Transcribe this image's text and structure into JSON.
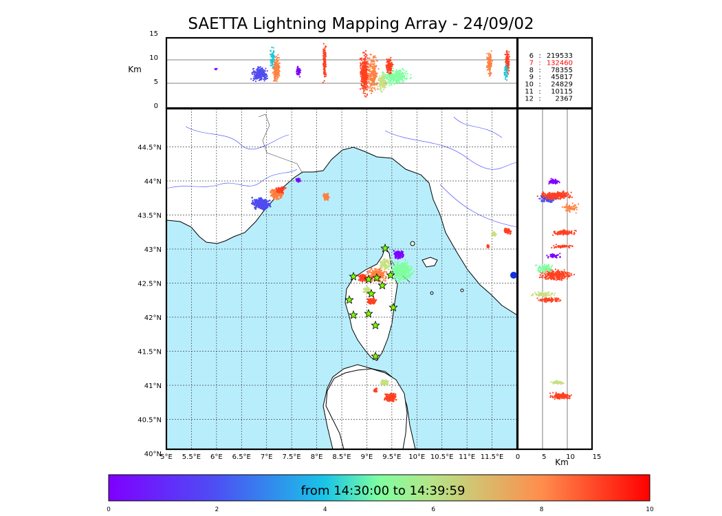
{
  "title": "SAETTA Lightning Mapping Array - 24/09/02",
  "altitude_unit": "Km",
  "top_panel": {
    "y_ticks": [
      "15",
      "10",
      "5",
      "0"
    ]
  },
  "right_panel": {
    "x_ticks": [
      "0",
      "5",
      "10",
      "15"
    ]
  },
  "map": {
    "lon_labels": [
      "5°E",
      "5.5°E",
      "6°E",
      "6.5°E",
      "7°E",
      "7.5°E",
      "8°E",
      "8.5°E",
      "9°E",
      "9.5°E",
      "10°E",
      "10.5°E",
      "11°E",
      "11.5°E"
    ],
    "lat_labels": [
      "44.5°N",
      "44°N",
      "43.5°N",
      "43°N",
      "42.5°N",
      "42°N",
      "41.5°N",
      "41°N",
      "40.5°N",
      "40°N"
    ],
    "lon_range": [
      5,
      12
    ],
    "lat_range": [
      40,
      45
    ]
  },
  "counts": [
    {
      "level": "6",
      "sep": ":",
      "value": "219533",
      "color": "#000000"
    },
    {
      "level": "7",
      "sep": ":",
      "value": "132460",
      "color": "#ff0000"
    },
    {
      "level": "8",
      "sep": ":",
      "value": "78355",
      "color": "#000000"
    },
    {
      "level": "9",
      "sep": ":",
      "value": "45817",
      "color": "#000000"
    },
    {
      "level": "10",
      "sep": ":",
      "value": "24829",
      "color": "#000000"
    },
    {
      "level": "11",
      "sep": ":",
      "value": "10115",
      "color": "#000000"
    },
    {
      "level": "12",
      "sep": ":",
      "value": "2367",
      "color": "#000000"
    }
  ],
  "colorbar": {
    "label": "from 14:30:00 to 14:39:59",
    "ticks": [
      "0",
      "2",
      "4",
      "6",
      "8",
      "10"
    ],
    "range": [
      0,
      10
    ]
  },
  "colors": {
    "sea": "#b8eefc",
    "stations": "#7fff00",
    "violet": "#7f00ff",
    "blue": "#4f4cf0",
    "cyan": "#18c8d8",
    "green": "#80ffa0",
    "yellow": "#c8e080",
    "orange": "#ff8040",
    "red": "#ff4020"
  }
}
